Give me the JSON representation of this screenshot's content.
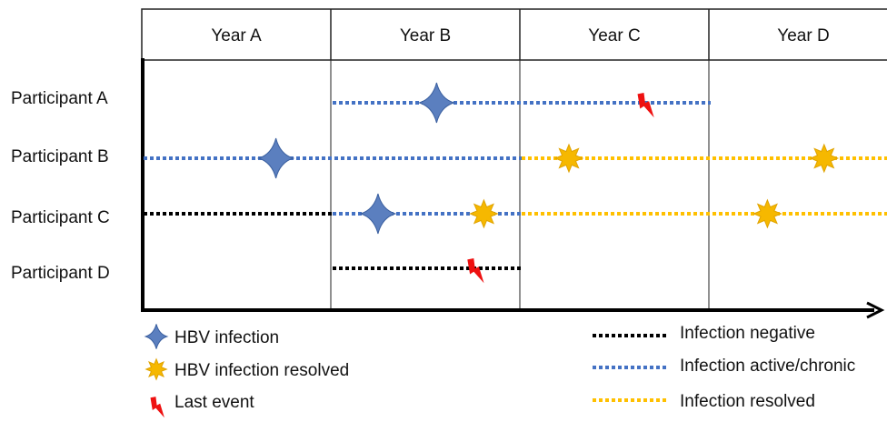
{
  "years": [
    "Year A",
    "Year B",
    "Year C",
    "Year D"
  ],
  "participants": [
    "Participant A",
    "Participant B",
    "Participant C",
    "Participant D"
  ],
  "colors": {
    "negative": "#000000",
    "active": "#4472c4",
    "resolved": "#ffc000",
    "hbv_star": "#5b7fbf",
    "resolved_burst": "#f6b800",
    "last_event": "#ee1111",
    "grid": "#222222"
  },
  "timeline": [
    {
      "participant": "Participant A",
      "segments": [
        {
          "status": "active",
          "from_year": 1.0,
          "to_year": 3.0
        }
      ],
      "events": [
        {
          "type": "hbv_infection",
          "year": 1.55
        },
        {
          "type": "last_event",
          "year": 2.65
        }
      ]
    },
    {
      "participant": "Participant B",
      "segments": [
        {
          "status": "active",
          "from_year": 0.0,
          "to_year": 2.0
        },
        {
          "status": "resolved",
          "from_year": 2.0,
          "to_year": 4.0
        }
      ],
      "events": [
        {
          "type": "hbv_infection",
          "year": 0.7
        },
        {
          "type": "hbv_infection_resolved",
          "year": 2.25
        },
        {
          "type": "hbv_infection_resolved",
          "year": 3.6
        }
      ]
    },
    {
      "participant": "Participant C",
      "segments": [
        {
          "status": "negative",
          "from_year": 0.0,
          "to_year": 1.0
        },
        {
          "status": "active",
          "from_year": 1.0,
          "to_year": 2.0
        },
        {
          "status": "resolved",
          "from_year": 2.0,
          "to_year": 4.0
        }
      ],
      "events": [
        {
          "type": "hbv_infection",
          "year": 1.24
        },
        {
          "type": "hbv_infection_resolved",
          "year": 1.8
        },
        {
          "type": "hbv_infection_resolved",
          "year": 3.3
        }
      ]
    },
    {
      "participant": "Participant D",
      "segments": [
        {
          "status": "negative",
          "from_year": 1.0,
          "to_year": 2.0
        }
      ],
      "events": [
        {
          "type": "last_event",
          "year": 1.75
        }
      ]
    }
  ],
  "legend_left": [
    {
      "type": "hbv_infection",
      "label": "HBV infection"
    },
    {
      "type": "hbv_infection_resolved",
      "label": "HBV infection resolved"
    },
    {
      "type": "last_event",
      "label": "Last event"
    }
  ],
  "legend_right": [
    {
      "status": "negative",
      "label": "Infection negative"
    },
    {
      "status": "active",
      "label": "Infection active/chronic"
    },
    {
      "status": "resolved",
      "label": "Infection resolved"
    }
  ]
}
